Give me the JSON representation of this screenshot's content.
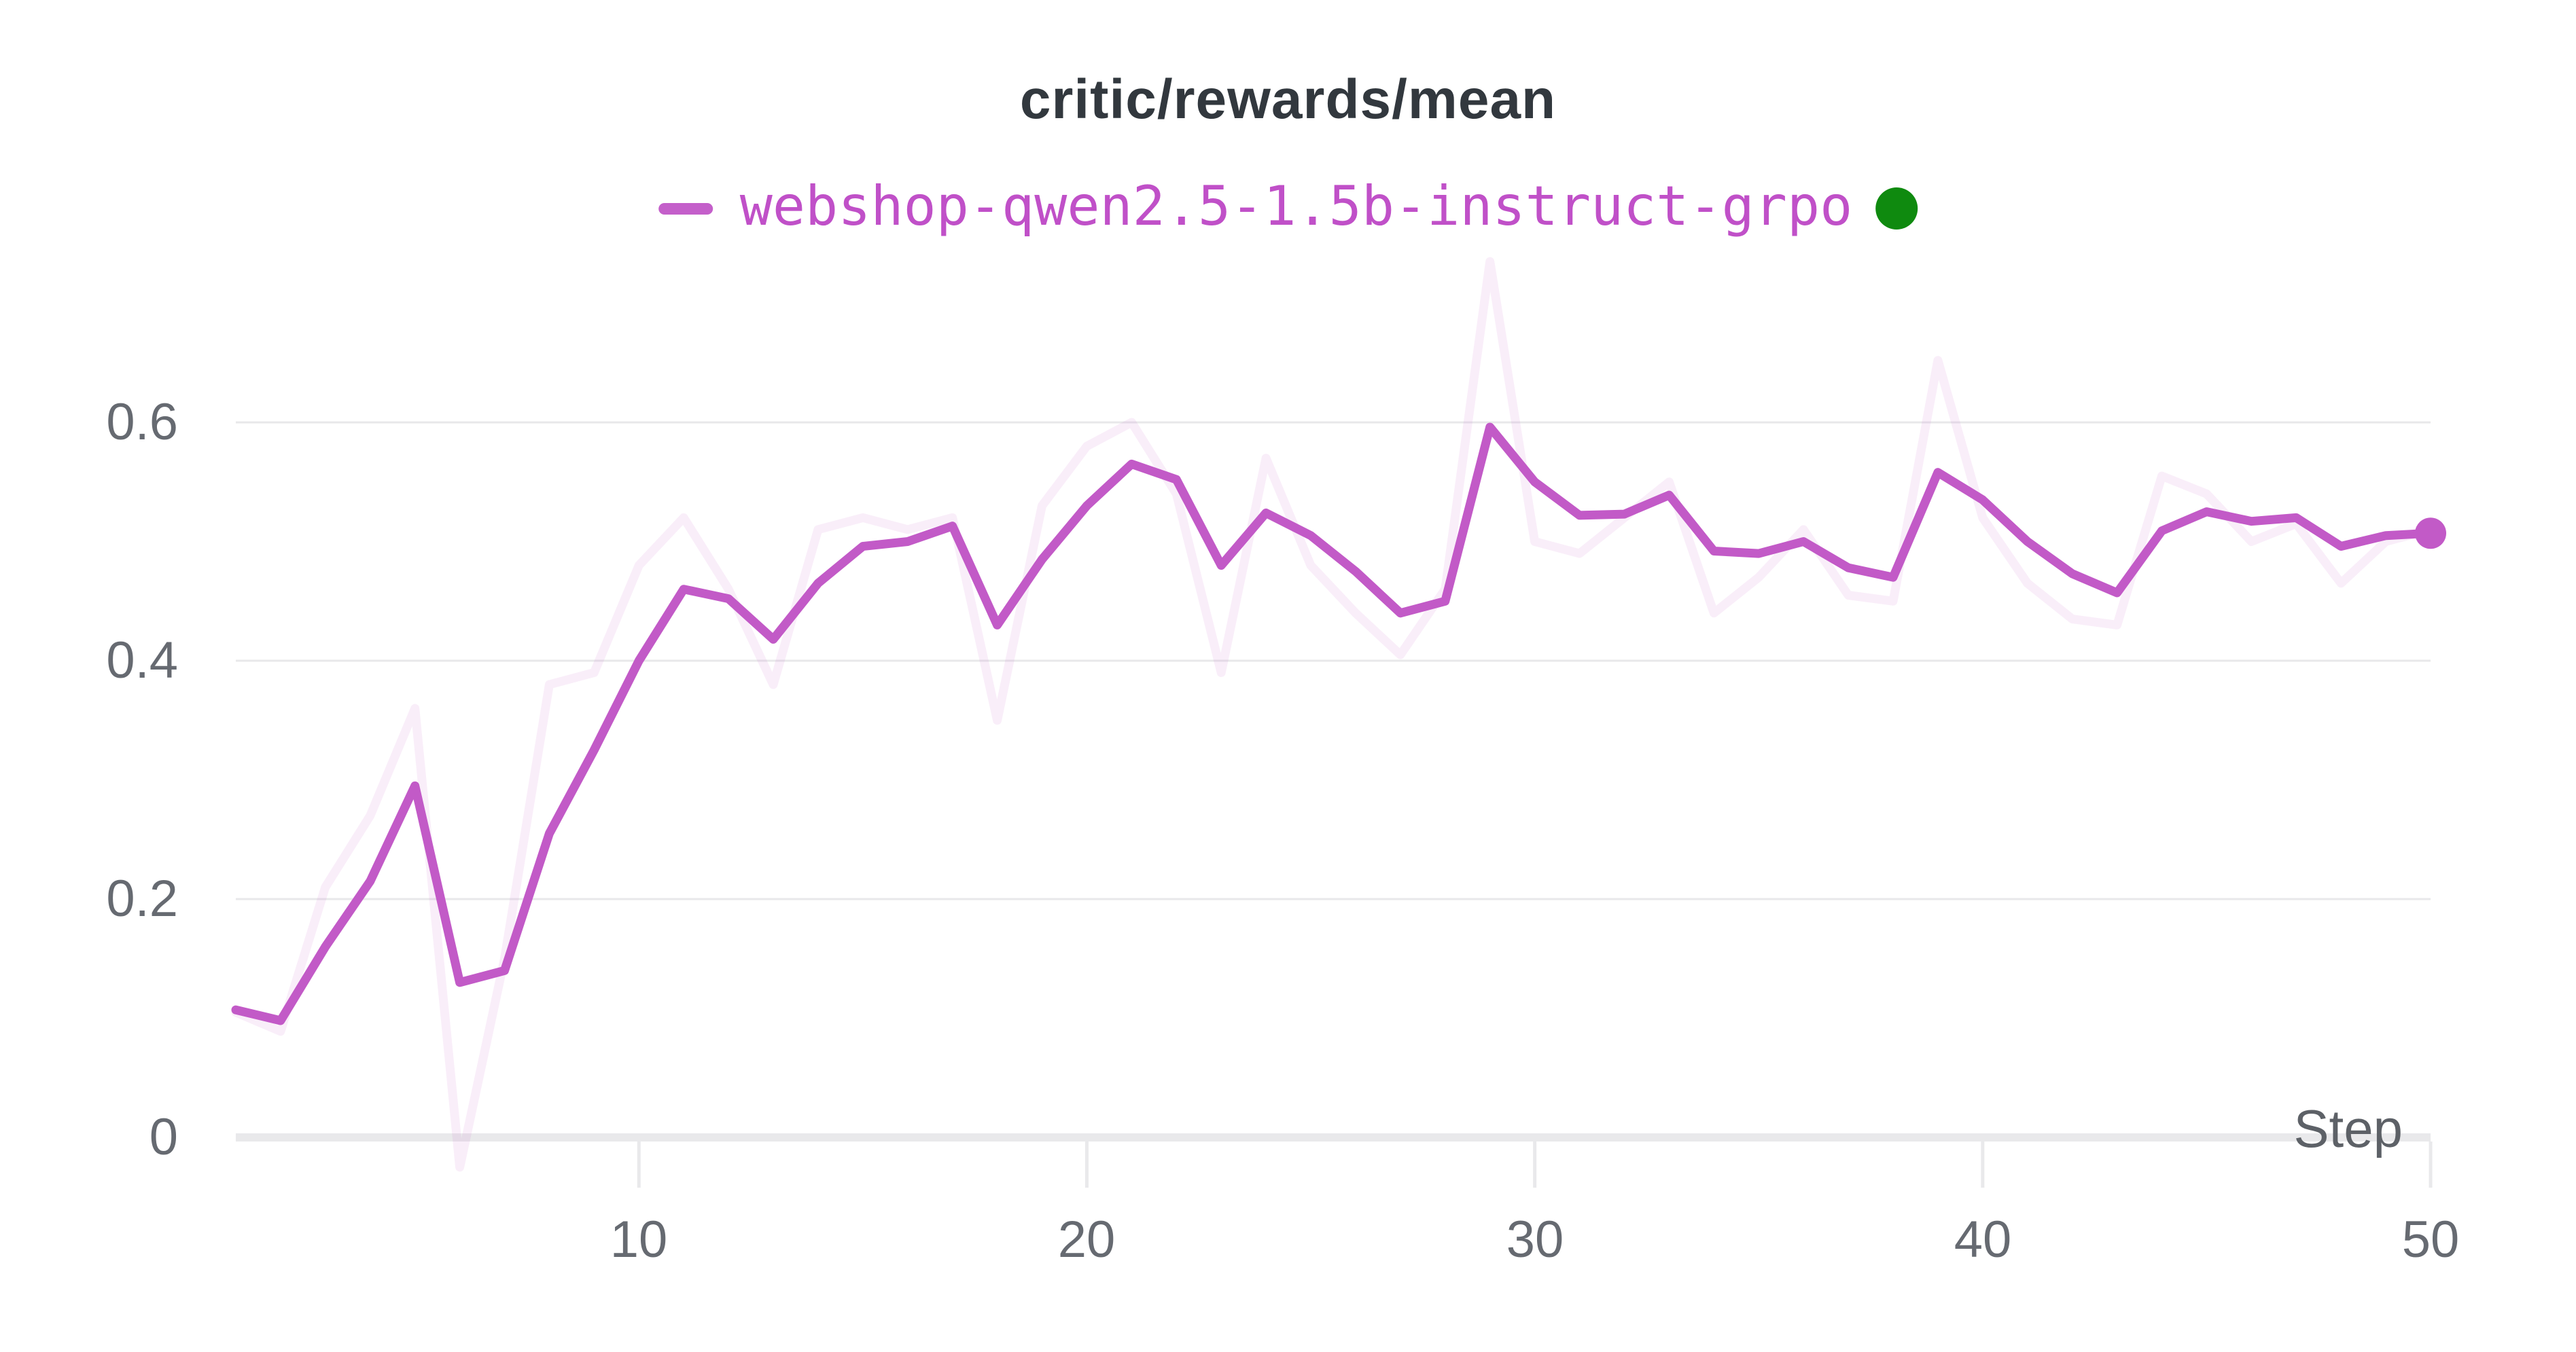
{
  "chart_data": {
    "type": "line",
    "title": "critic/rewards/mean",
    "xlabel": "Step",
    "ylabel": "",
    "legend_position": "top-center",
    "grid": "horizontal",
    "x": [
      1,
      2,
      3,
      4,
      5,
      6,
      7,
      8,
      9,
      10,
      11,
      12,
      13,
      14,
      15,
      16,
      17,
      18,
      19,
      20,
      21,
      22,
      23,
      24,
      25,
      26,
      27,
      28,
      29,
      30,
      31,
      32,
      33,
      34,
      35,
      36,
      37,
      38,
      39,
      40,
      41,
      42,
      43,
      44,
      45,
      46,
      47,
      48,
      49,
      50
    ],
    "series": [
      {
        "name": "webshop-qwen2.5-1.5b-instruct-grpo (raw, unsmoothed backdrop)",
        "role": "raw",
        "opacity": 0.1,
        "values": [
          0.105,
          0.089,
          0.21,
          0.27,
          0.36,
          -0.025,
          0.15,
          0.38,
          0.39,
          0.48,
          0.52,
          0.46,
          0.38,
          0.51,
          0.52,
          0.51,
          0.52,
          0.35,
          0.53,
          0.58,
          0.6,
          0.54,
          0.39,
          0.57,
          0.48,
          0.44,
          0.405,
          0.46,
          0.735,
          0.5,
          0.49,
          0.52,
          0.55,
          0.44,
          0.47,
          0.51,
          0.455,
          0.45,
          0.652,
          0.52,
          0.465,
          0.435,
          0.43,
          0.555,
          0.54,
          0.5,
          0.515,
          0.465,
          0.5,
          0.51
        ]
      },
      {
        "name": "webshop-qwen2.5-1.5b-instruct-grpo",
        "role": "smoothed",
        "opacity": 1.0,
        "values": [
          0.107,
          0.098,
          0.16,
          0.215,
          0.295,
          0.13,
          0.14,
          0.255,
          0.325,
          0.4,
          0.46,
          0.452,
          0.418,
          0.465,
          0.496,
          0.5,
          0.513,
          0.43,
          0.485,
          0.53,
          0.565,
          0.552,
          0.48,
          0.524,
          0.505,
          0.475,
          0.44,
          0.45,
          0.596,
          0.55,
          0.522,
          0.523,
          0.539,
          0.492,
          0.49,
          0.5,
          0.478,
          0.47,
          0.558,
          0.535,
          0.5,
          0.473,
          0.457,
          0.509,
          0.525,
          0.517,
          0.52,
          0.496,
          0.505,
          0.507
        ]
      }
    ],
    "end_marker": {
      "step": 50,
      "value": 0.507
    },
    "x_ticks": [
      10,
      20,
      30,
      40,
      50
    ],
    "x_tick_labels": [
      "10",
      "20",
      "30",
      "40",
      "50"
    ],
    "y_gridlines": [
      0.2,
      0.4,
      0.6
    ],
    "y_tick_labels_top_to_bottom": [
      "0.6",
      "0.4",
      "0.2",
      "0"
    ],
    "ylim": [
      -0.03,
      0.74
    ],
    "xlim": [
      1,
      50
    ]
  },
  "header": {
    "title": "critic/rewards/mean"
  },
  "legend": {
    "label": "webshop-qwen2.5-1.5b-instruct-grpo",
    "swatch_color": "#C45FCA",
    "label_color": "#C050C8",
    "status_dot_color": "#0F8A0F",
    "status_dot_meaning": "run-finished-indicator"
  },
  "axes": {
    "x_title": "Step",
    "x_tick_labels": [
      "10",
      "20",
      "30",
      "40",
      "50"
    ],
    "y_tick_labels": [
      "0.6",
      "0.4",
      "0.2",
      "0"
    ]
  },
  "colors": {
    "line": "#C25AC7",
    "raw_line": "#C25AC7",
    "raw_line_opacity": "0.10",
    "title_text": "#32383E",
    "tick_text": "#666A71",
    "step_label_text": "#5D6167",
    "gridline": "#E8E8EA",
    "axis_band": "#E9E9EB",
    "background": "#FFFFFF"
  }
}
